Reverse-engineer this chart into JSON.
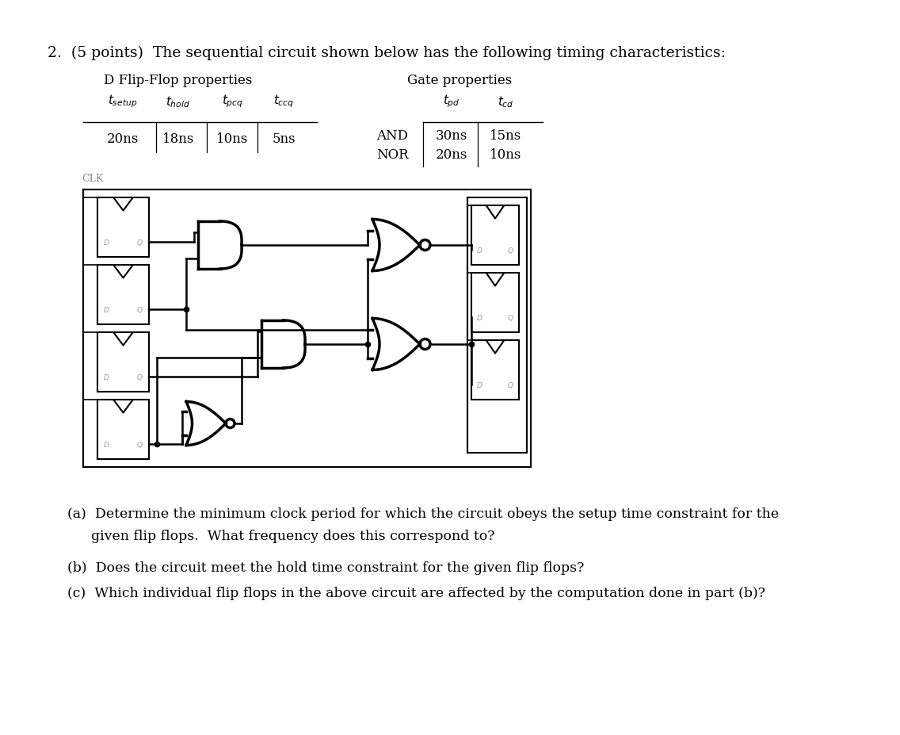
{
  "title": "2.  (5 points)  The sequential circuit shown below has the following timing characteristics:",
  "ff_table_title": "D Flip-Flop properties",
  "ff_headers": [
    "$t_{setup}$",
    "$t_{hold}$",
    "$t_{pcq}$",
    "$t_{ccq}$"
  ],
  "ff_values": [
    "20ns",
    "18ns",
    "10ns",
    "5ns"
  ],
  "gate_table_title": "Gate properties",
  "gate_col_headers": [
    "$t_{pd}$",
    "$t_{cd}$"
  ],
  "gate_rows": [
    [
      "AND",
      "30ns",
      "15ns"
    ],
    [
      "NOR",
      "20ns",
      "10ns"
    ]
  ],
  "clk_label": "CLK",
  "q_a_line1": "(a)  Determine the minimum clock period for which the circuit obeys the setup time constraint for the",
  "q_a_line2": "given flip flops.  What frequency does this correspond to?",
  "q_b": "(b)  Does the circuit meet the hold time constraint for the given flip flops?",
  "q_c": "(c)  Which individual flip flops in the above circuit are affected by the computation done in part (b)?",
  "bg_color": "#ffffff",
  "black": "#000000",
  "gray": "#888888"
}
